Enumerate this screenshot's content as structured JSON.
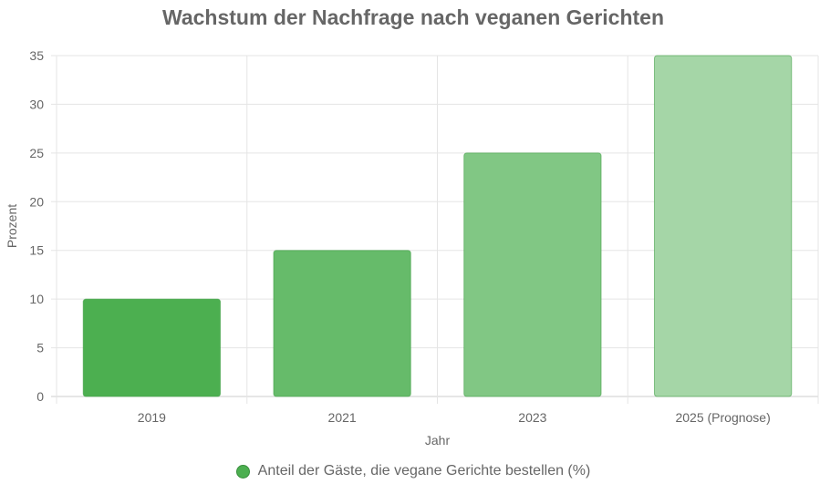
{
  "chart_data": {
    "type": "bar",
    "title": "Wachstum der Nachfrage nach veganen Gerichten",
    "xlabel": "Jahr",
    "ylabel": "Prozent",
    "categories": [
      "2019",
      "2021",
      "2023",
      "2025 (Prognose)"
    ],
    "series": [
      {
        "name": "Anteil der Gäste, die vegane Gerichte bestellen (%)",
        "values": [
          10,
          15,
          25,
          35
        ]
      }
    ],
    "bar_colors": [
      "#4caf50",
      "#66bb6a",
      "#81c784",
      "#a5d6a7"
    ],
    "legend_color": "#4caf50",
    "ylim": [
      0,
      35
    ],
    "yticks": [
      0,
      5,
      10,
      15,
      20,
      25,
      30,
      35
    ],
    "grid": true,
    "legend_position": "bottom"
  }
}
